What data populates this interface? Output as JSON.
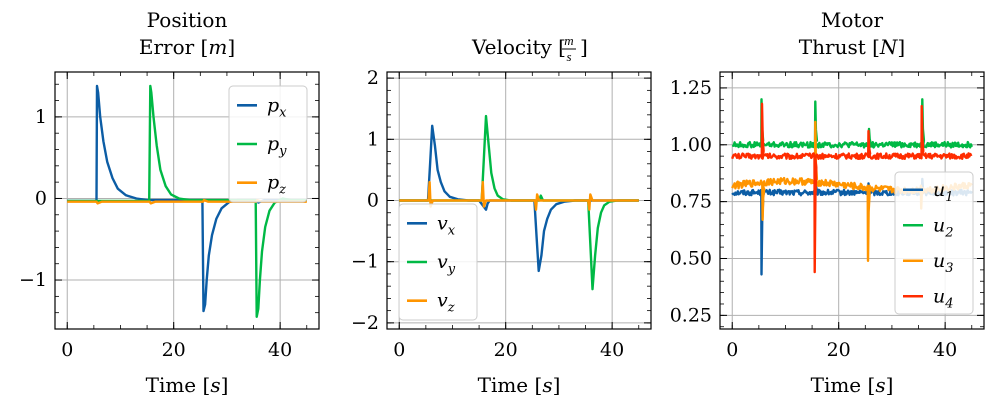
{
  "colors": {
    "blue": "#0C5DA5",
    "green": "#00B945",
    "orange": "#FF9500",
    "red": "#FF2C00",
    "grid": "#b0b0b0"
  },
  "chart_data": [
    {
      "type": "line",
      "title_lines": [
        "Position",
        "Error [m]"
      ],
      "xlabel": "Time [s]",
      "ylabel": "",
      "xlim": [
        -2.3,
        47.3
      ],
      "ylim": [
        -1.6,
        1.55
      ],
      "xticks": [
        0,
        20,
        40
      ],
      "xtick_labels": [
        "0",
        "20",
        "40"
      ],
      "yticks": [
        -1,
        0,
        1
      ],
      "ytick_labels": [
        "−1",
        "0",
        "1"
      ],
      "grid": true,
      "legend": "top-right",
      "series": [
        {
          "name": "p",
          "sub": "x",
          "color": "blue",
          "x": [
            0,
            5.5,
            5.6,
            5.8,
            6.2,
            6.8,
            7.5,
            8.5,
            9.5,
            11,
            13,
            15,
            25.4,
            25.6,
            25.9,
            26.2,
            26.6,
            27.2,
            28,
            29,
            30.5,
            32,
            35.5,
            35.9,
            37,
            40,
            45
          ],
          "y": [
            -0.03,
            -0.03,
            1.38,
            1.3,
            1.0,
            0.7,
            0.45,
            0.25,
            0.12,
            0.04,
            0.0,
            -0.02,
            -0.02,
            -1.38,
            -1.3,
            -1.0,
            -0.7,
            -0.45,
            -0.25,
            -0.12,
            -0.04,
            -0.02,
            -0.02,
            -0.05,
            -0.02,
            -0.02,
            -0.02
          ]
        },
        {
          "name": "p",
          "sub": "y",
          "color": "green",
          "x": [
            0,
            15.4,
            15.6,
            15.8,
            16.2,
            16.8,
            17.5,
            18.5,
            19.5,
            21,
            23,
            35.4,
            35.6,
            35.9,
            36.2,
            36.6,
            37.2,
            38,
            39,
            40.5,
            42,
            45
          ],
          "y": [
            -0.03,
            -0.03,
            1.38,
            1.3,
            1.0,
            0.65,
            0.35,
            0.15,
            0.05,
            0.0,
            -0.02,
            -0.02,
            -1.45,
            -1.35,
            -1.0,
            -0.65,
            -0.35,
            -0.15,
            -0.05,
            0.0,
            -0.02,
            -0.02
          ]
        },
        {
          "name": "p",
          "sub": "z",
          "color": "orange",
          "x": [
            0,
            5.5,
            5.7,
            6.5,
            15.5,
            15.7,
            16.5,
            25.5,
            25.7,
            26.5,
            35.5,
            35.7,
            36.5,
            45
          ],
          "y": [
            -0.04,
            -0.04,
            -0.06,
            -0.04,
            -0.04,
            -0.06,
            -0.04,
            -0.04,
            -0.02,
            -0.04,
            -0.04,
            -0.02,
            -0.04,
            -0.04
          ]
        }
      ]
    },
    {
      "type": "line",
      "title_lines": [
        "Velocity [m/s]"
      ],
      "xlabel": "Time [s]",
      "ylabel": "",
      "xlim": [
        -2.3,
        47.3
      ],
      "ylim": [
        -2.1,
        2.1
      ],
      "xticks": [
        0,
        20,
        40
      ],
      "xtick_labels": [
        "0",
        "20",
        "40"
      ],
      "yticks": [
        -2,
        -1,
        0,
        1,
        2
      ],
      "ytick_labels": [
        "−2",
        "−1",
        "0",
        "1",
        "2"
      ],
      "grid": true,
      "legend": "bottom-left",
      "series": [
        {
          "name": "v",
          "sub": "x",
          "color": "blue",
          "x": [
            0,
            5.4,
            5.8,
            6.2,
            6.7,
            7.2,
            7.8,
            8.5,
            9.5,
            11,
            13,
            15,
            16.3,
            16.6,
            17,
            25.4,
            25.8,
            26.2,
            26.7,
            27.2,
            27.8,
            28.5,
            29.5,
            31,
            33,
            45
          ],
          "y": [
            0.0,
            0.0,
            0.6,
            1.22,
            0.9,
            0.5,
            0.3,
            0.15,
            0.06,
            0.02,
            0.0,
            0.0,
            -0.15,
            -0.05,
            0.0,
            0.0,
            -0.6,
            -1.15,
            -0.9,
            -0.5,
            -0.3,
            -0.15,
            -0.06,
            -0.02,
            0.0,
            0.0
          ]
        },
        {
          "name": "v",
          "sub": "y",
          "color": "green",
          "x": [
            0,
            15.5,
            15.9,
            16.3,
            16.8,
            17.3,
            17.9,
            18.5,
            19.5,
            21,
            23,
            26.3,
            26.6,
            27,
            35.5,
            35.9,
            36.3,
            36.8,
            37.3,
            37.9,
            38.5,
            39.5,
            41,
            45
          ],
          "y": [
            0.0,
            0.0,
            0.7,
            1.38,
            0.9,
            0.45,
            0.2,
            0.08,
            0.02,
            0.0,
            0.0,
            0.0,
            0.08,
            0.0,
            0.0,
            -0.7,
            -1.45,
            -0.9,
            -0.45,
            -0.2,
            -0.08,
            -0.02,
            0.0,
            0.0
          ]
        },
        {
          "name": "v",
          "sub": "z",
          "color": "orange",
          "x": [
            0,
            5.5,
            5.7,
            5.9,
            6.3,
            15.5,
            15.7,
            15.9,
            16.3,
            25.5,
            25.7,
            25.9,
            26.3,
            35.5,
            35.7,
            35.9,
            36.3,
            45
          ],
          "y": [
            0.0,
            0.0,
            0.3,
            -0.1,
            0.0,
            0.0,
            0.3,
            -0.1,
            0.0,
            0.0,
            -0.15,
            0.1,
            0.0,
            0.0,
            -0.15,
            0.1,
            0.0,
            0.0
          ]
        }
      ]
    },
    {
      "type": "line",
      "title_lines": [
        "Motor",
        "Thrust [N]"
      ],
      "xlabel": "Time [s]",
      "ylabel": "",
      "xlim": [
        -2.3,
        47.3
      ],
      "ylim": [
        0.19,
        1.32
      ],
      "xticks": [
        0,
        20,
        40
      ],
      "xtick_labels": [
        "0",
        "20",
        "40"
      ],
      "yticks": [
        0.25,
        0.5,
        0.75,
        1.0,
        1.25
      ],
      "ytick_labels": [
        "0.25",
        "0.50",
        "0.75",
        "1.00",
        "1.25"
      ],
      "grid": true,
      "legend": "bottom-right",
      "series": [
        {
          "name": "u",
          "sub": "1",
          "color": "blue",
          "base": 0.79,
          "noise": 0.012,
          "spikes": [
            [
              5.5,
              0.43
            ],
            [
              15.6,
              0.88
            ],
            [
              25.6,
              0.83
            ],
            [
              35.7,
              0.85
            ]
          ]
        },
        {
          "name": "u",
          "sub": "2",
          "color": "green",
          "base": 1.0,
          "noise": 0.012,
          "spikes": [
            [
              5.5,
              1.2
            ],
            [
              15.6,
              1.19
            ],
            [
              25.7,
              1.07
            ],
            [
              35.7,
              1.2
            ]
          ]
        },
        {
          "name": "u",
          "sub": "3",
          "color": "orange",
          "base": 0.82,
          "noise": 0.015,
          "spikes": [
            [
              5.7,
              0.67
            ],
            [
              15.6,
              1.1
            ],
            [
              25.5,
              0.49
            ],
            [
              35.5,
              0.72
            ]
          ]
        },
        {
          "name": "u",
          "sub": "4",
          "color": "red",
          "base": 0.95,
          "noise": 0.012,
          "spikes": [
            [
              5.6,
              1.18
            ],
            [
              15.5,
              0.44
            ],
            [
              25.6,
              1.06
            ],
            [
              35.6,
              1.17
            ]
          ]
        }
      ]
    }
  ]
}
